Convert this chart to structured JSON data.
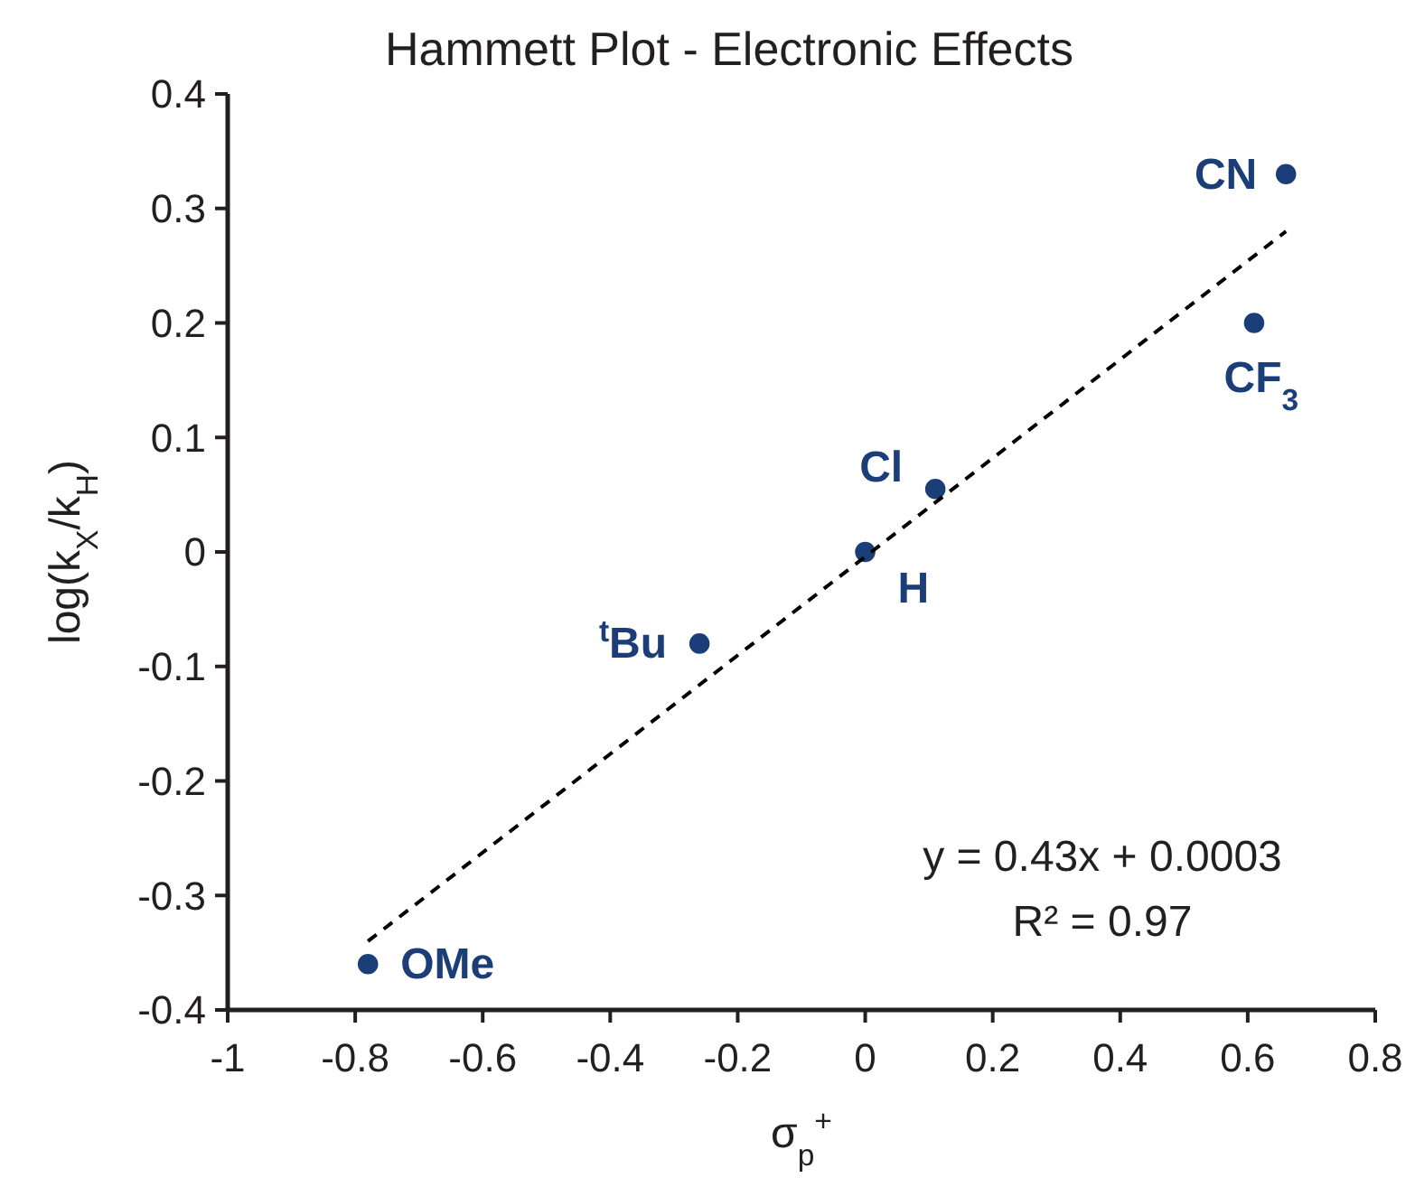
{
  "chart_data": {
    "type": "scatter",
    "title": "Hammett Plot - Electronic Effects",
    "xlabel": "σ$_{p}$$^{+}$",
    "ylabel": "log(k$_{X}$/k$_{H}$)",
    "xlim": [
      -1,
      0.8
    ],
    "xticks": [
      -1,
      -0.8,
      -0.6,
      -0.4,
      -0.2,
      0,
      0.2,
      0.4,
      0.6,
      0.8
    ],
    "ylim": [
      -0.4,
      0.4
    ],
    "yticks": [
      -0.4,
      -0.3,
      -0.2,
      -0.1,
      0,
      0.1,
      0.2,
      0.3,
      0.4
    ],
    "grid": false,
    "series": [
      {
        "marker": "circle",
        "color": "#1b3e78",
        "x": [
          -0.78,
          -0.26,
          0,
          0.11,
          0.61,
          0.66
        ],
        "values": [
          -0.36,
          -0.08,
          0,
          0.055,
          0.2,
          0.33
        ]
      },
      {
        "type": "line",
        "color": "#000000",
        "line_style": "dashed",
        "x": [
          -0.78,
          0.66
        ],
        "values": [
          -0.34,
          0.28
        ]
      }
    ],
    "annotations": [
      {
        "text": "OMe",
        "x": -0.78,
        "y": -0.36
      },
      {
        "text": "$^{t}$Bu",
        "x": -0.26,
        "y": -0.08
      },
      {
        "text": "H",
        "x": 0,
        "y": 0
      },
      {
        "text": "Cl",
        "x": 0.11,
        "y": 0.055
      },
      {
        "text": "CF$_{3}$",
        "x": 0.61,
        "y": 0.2
      },
      {
        "text": "CN",
        "x": 0.66,
        "y": 0.33
      },
      "y = 0.43x + 0.0003",
      "R² = 0.97"
    ]
  }
}
